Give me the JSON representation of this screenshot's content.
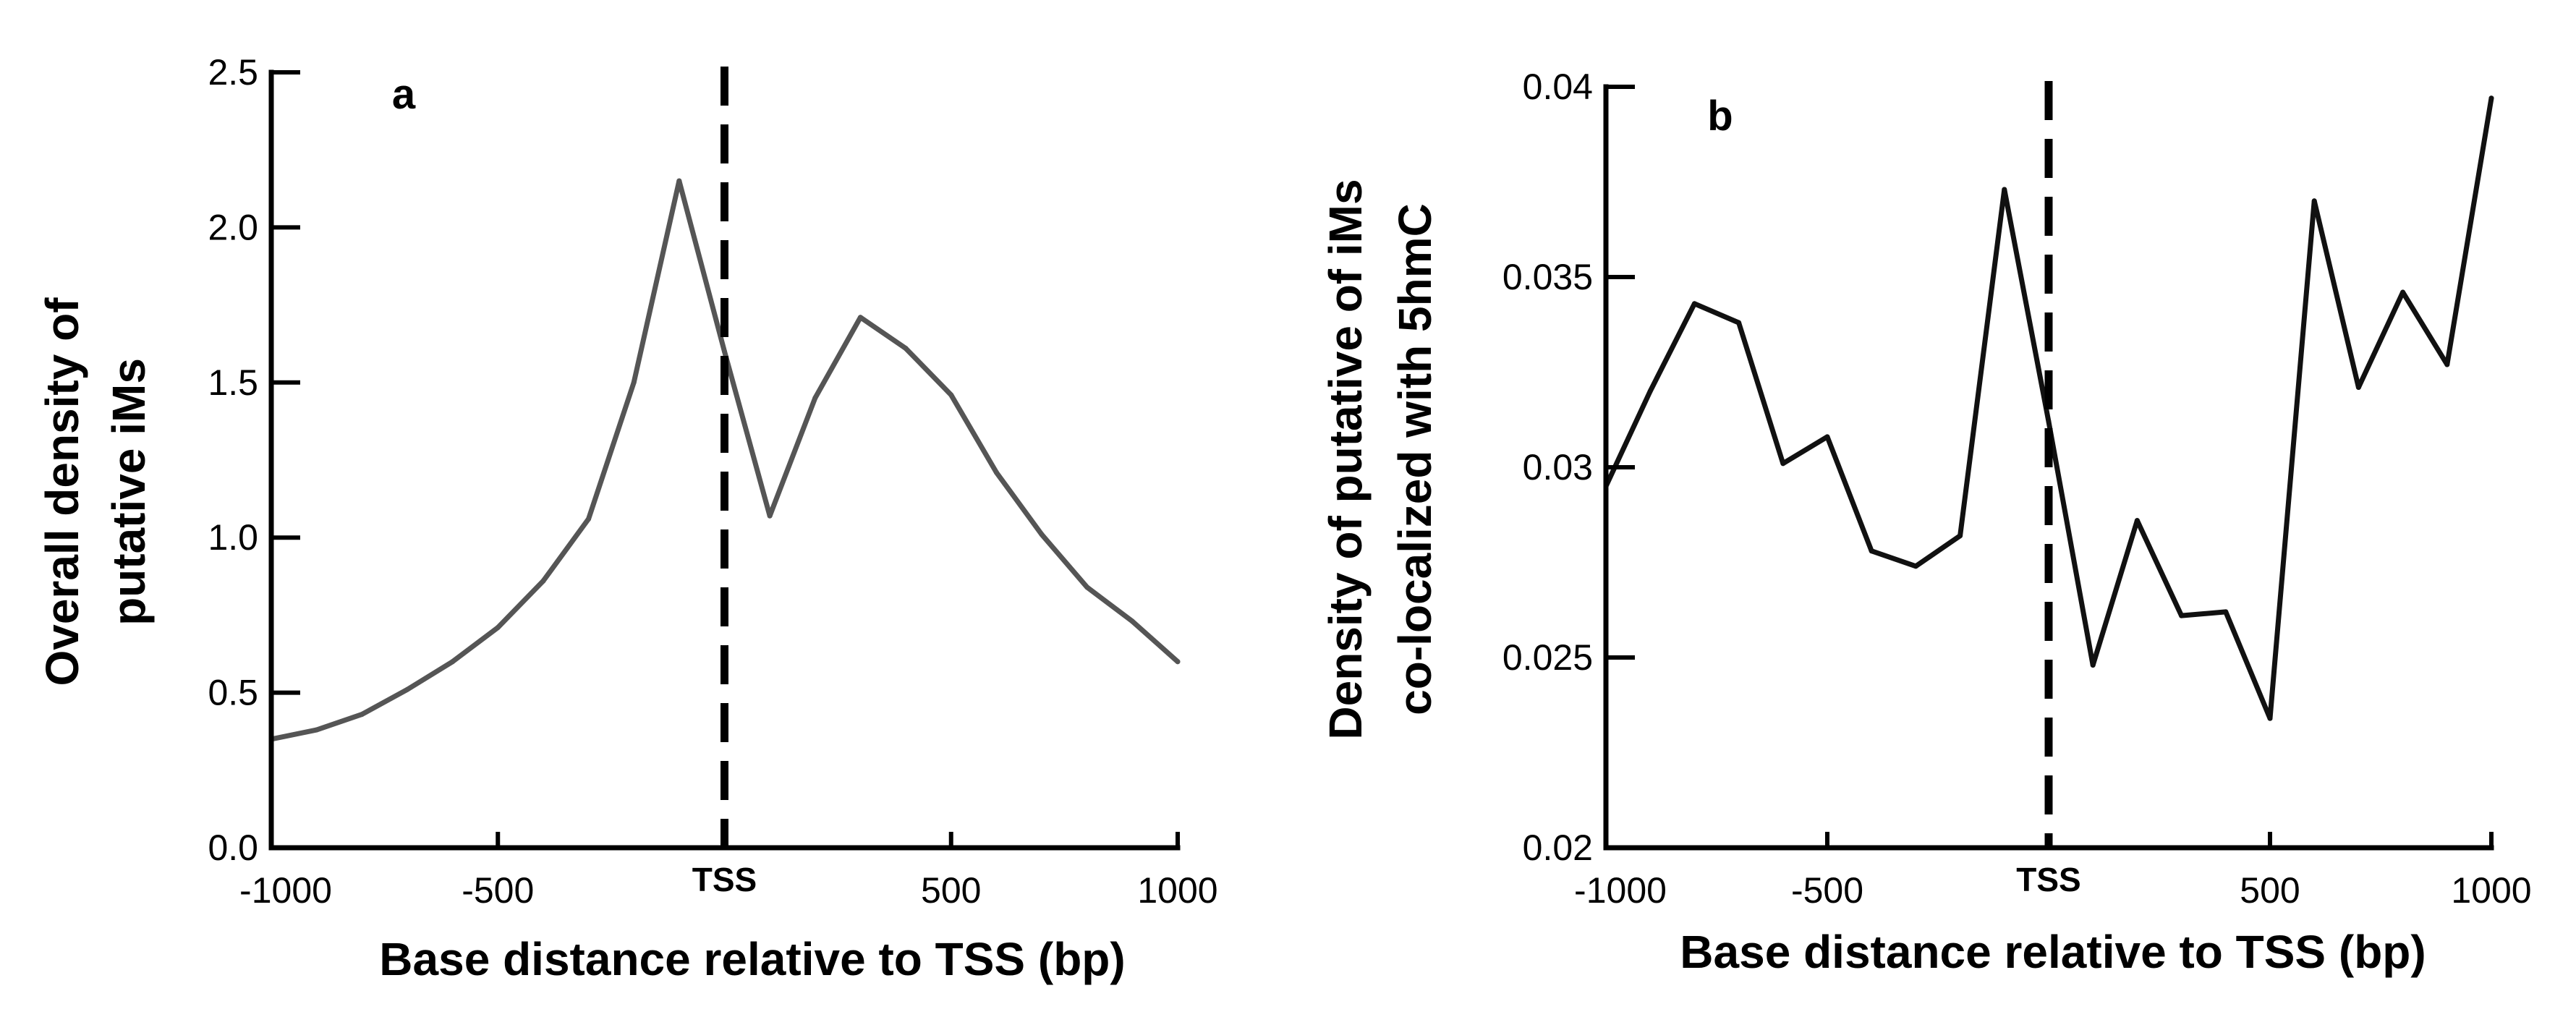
{
  "chart_data": [
    {
      "id": "a",
      "type": "line",
      "panel_label": "a",
      "xlabel": "Base distance relative to TSS (bp)",
      "ylabel_lines": [
        "Overall density of",
        "putative iMs"
      ],
      "xlim": [
        -1000,
        1000
      ],
      "ylim": [
        0,
        2.5
      ],
      "x_ticks": [
        -1000,
        -500,
        0,
        500,
        1000
      ],
      "x_tick_labels": [
        "-1000",
        "-500",
        "TSS",
        "500",
        "1000"
      ],
      "y_ticks": [
        0,
        0.5,
        1,
        1.5,
        2,
        2.5
      ],
      "y_tick_labels": [
        "0.0",
        "0.5",
        "1.0",
        "1.5",
        "2.0",
        "2.5"
      ],
      "reference_line": {
        "x": 0,
        "label": "TSS"
      },
      "line_color": "#555555",
      "series": [
        {
          "name": "Overall density of putative iMs",
          "x": [
            -1000,
            -900,
            -800,
            -700,
            -600,
            -500,
            -400,
            -300,
            -200,
            -100,
            0,
            100,
            200,
            300,
            400,
            500,
            600,
            700,
            800,
            900,
            1000
          ],
          "y": [
            0.35,
            0.38,
            0.43,
            0.51,
            0.6,
            0.71,
            0.86,
            1.06,
            1.5,
            2.15,
            1.6,
            1.07,
            1.45,
            1.71,
            1.61,
            1.46,
            1.21,
            1.01,
            0.84,
            0.73,
            0.6
          ]
        }
      ]
    },
    {
      "id": "b",
      "type": "line",
      "panel_label": "b",
      "xlabel": "Base distance relative to TSS (bp)",
      "ylabel_lines": [
        "Density of putative of iMs",
        "co-localized with 5hmC"
      ],
      "xlim": [
        -1000,
        1000
      ],
      "ylim": [
        0.02,
        0.04
      ],
      "x_ticks": [
        -1000,
        -500,
        0,
        500,
        1000
      ],
      "x_tick_labels": [
        "-1000",
        "-500",
        "TSS",
        "500",
        "1000"
      ],
      "y_ticks": [
        0.02,
        0.025,
        0.03,
        0.035,
        0.04
      ],
      "y_tick_labels": [
        "0.02",
        "0.025",
        "0.03",
        "0.035",
        "0.04"
      ],
      "reference_line": {
        "x": 0,
        "label": "TSS"
      },
      "line_color": "#111111",
      "series": [
        {
          "name": "Density of putative of iMs co-localized with 5hmC",
          "x": [
            -1000,
            -900,
            -800,
            -700,
            -600,
            -500,
            -400,
            -300,
            -200,
            -100,
            0,
            100,
            200,
            300,
            400,
            500,
            600,
            700,
            800,
            900,
            1000
          ],
          "y": [
            0.0295,
            0.032,
            0.0343,
            0.0338,
            0.0301,
            0.0308,
            0.0278,
            0.0274,
            0.0282,
            0.0373,
            0.0312,
            0.0248,
            0.0286,
            0.0261,
            0.0262,
            0.0234,
            0.037,
            0.0321,
            0.0346,
            0.0327,
            0.0397
          ]
        }
      ]
    }
  ]
}
